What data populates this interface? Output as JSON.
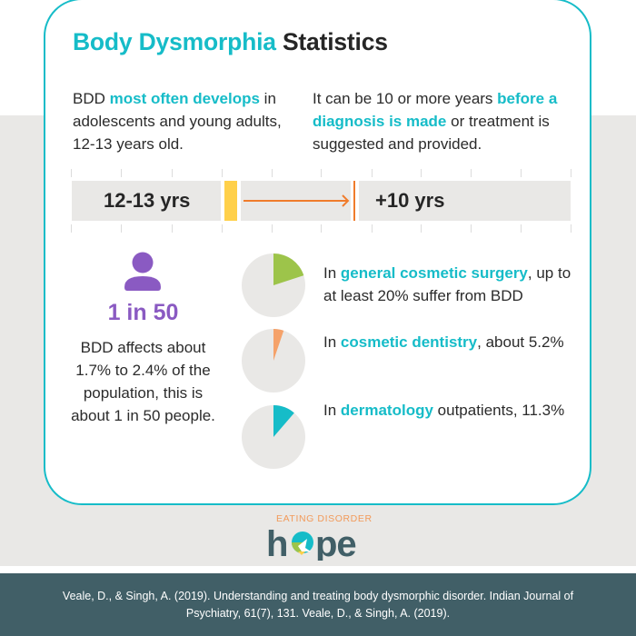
{
  "title": {
    "accent": "Body Dysmorphia",
    "plain": "Statistics"
  },
  "intro_left": {
    "lead": "BDD ",
    "highlight": "most often develops",
    "rest": " in adolescents and young adults, 12-13 years old."
  },
  "intro_right": {
    "lead": "It can be 10 or more years ",
    "highlight": "before a diagnosis is made",
    "rest": " or treatment is suggested and provided."
  },
  "timeline": {
    "start_label": "12-13 yrs",
    "end_label": "+10 yrs",
    "colors": {
      "start_marker": "#ffd04a",
      "arrow": "#f07c2c",
      "track": "#e9e8e6"
    }
  },
  "population": {
    "icon": "person-icon",
    "headline": "1 in 50",
    "text": "BDD affects about 1.7% to 2.4% of the population, this is about 1 in 50 people.",
    "color": "#8a5ac2"
  },
  "stats": [
    {
      "lead": "In ",
      "highlight": "general cosmetic surgery",
      "rest": ", up to at least 20% suffer from BDD",
      "percent": 20,
      "color": "#9dc44a"
    },
    {
      "lead": "In ",
      "highlight": "cosmetic dentistry",
      "rest": ", about 5.2%",
      "percent": 5.2,
      "color": "#f5a26a"
    },
    {
      "lead": "In ",
      "highlight": "dermatology",
      "rest": " outpatients, 11.3%",
      "percent": 11.3,
      "color": "#16bcc8"
    }
  ],
  "logo": {
    "top": "EATING DISORDER",
    "word": "hope"
  },
  "footer": {
    "citation": "Veale, D., & Singh, A. (2019). Understanding and treating body dysmorphic disorder. Indian Journal of Psychiatry, 61(7), 131. Veale, D., & Singh, A. (2019)."
  },
  "colors": {
    "accent": "#16bcc8",
    "background": "#e9e8e6",
    "footer": "#415f67",
    "pie_base": "#e9e8e6"
  }
}
